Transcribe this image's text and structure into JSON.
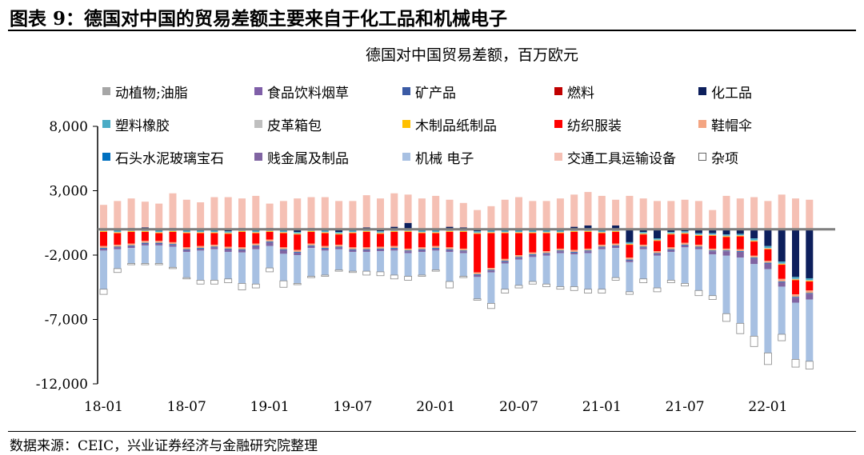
{
  "figure": {
    "title": "图表 9：德国对中国的贸易差额主要来自于化工品和机械电子",
    "source": "数据来源：CEIC，兴业证券经济与金融研究院整理"
  },
  "chart_data": {
    "type": "bar",
    "stacked": true,
    "title": "德国对中国贸易差额，百万欧元",
    "xlabel": "",
    "ylabel": "",
    "ylim": [
      -12000,
      8000
    ],
    "yticks": [
      8000,
      3000,
      -2000,
      -7000,
      -12000
    ],
    "ytick_labels": [
      "8,000",
      "3,000",
      "-2,000",
      "-7,000",
      "-12,000"
    ],
    "xtick_labels": [
      "18-01",
      "18-07",
      "19-01",
      "19-07",
      "20-01",
      "20-07",
      "21-01",
      "21-07",
      "22-01"
    ],
    "legend_position": "top",
    "categories": [
      "18-01",
      "18-02",
      "18-03",
      "18-04",
      "18-05",
      "18-06",
      "18-07",
      "18-08",
      "18-09",
      "18-10",
      "18-11",
      "18-12",
      "19-01",
      "19-02",
      "19-03",
      "19-04",
      "19-05",
      "19-06",
      "19-07",
      "19-08",
      "19-09",
      "19-10",
      "19-11",
      "19-12",
      "20-01",
      "20-02",
      "20-03",
      "20-04",
      "20-05",
      "20-06",
      "20-07",
      "20-08",
      "20-09",
      "20-10",
      "20-11",
      "20-12",
      "21-01",
      "21-02",
      "21-03",
      "21-04",
      "21-05",
      "21-06",
      "21-07",
      "21-08",
      "21-09",
      "21-10",
      "21-11",
      "21-12",
      "22-01",
      "22-02",
      "22-03",
      "22-04"
    ],
    "series": [
      {
        "name": "动植物;油脂",
        "color": "#a6a6a6",
        "outline": false,
        "values": [
          0,
          0,
          0,
          0,
          0,
          0,
          0,
          0,
          0,
          0,
          0,
          0,
          0,
          0,
          0,
          0,
          0,
          0,
          0,
          0,
          0,
          0,
          0,
          0,
          0,
          0,
          0,
          0,
          0,
          0,
          0,
          0,
          0,
          0,
          0,
          0,
          0,
          0,
          0,
          0,
          0,
          0,
          0,
          0,
          0,
          0,
          0,
          0,
          0,
          0,
          0,
          0
        ]
      },
      {
        "name": "食品饮料烟草",
        "color": "#7f5fa8",
        "outline": false,
        "values": [
          0,
          0,
          0,
          0,
          0,
          0,
          0,
          0,
          0,
          0,
          0,
          0,
          0,
          0,
          0,
          0,
          0,
          0,
          0,
          0,
          0,
          0,
          0,
          0,
          0,
          0,
          0,
          0,
          0,
          0,
          0,
          0,
          0,
          0,
          0,
          0,
          0,
          0,
          0,
          0,
          0,
          0,
          0,
          0,
          0,
          0,
          0,
          0,
          0,
          0,
          0,
          0
        ]
      },
      {
        "name": "矿产品",
        "color": "#3b5ba5",
        "outline": false,
        "values": [
          0,
          0,
          0,
          0,
          0,
          0,
          0,
          0,
          0,
          0,
          0,
          0,
          0,
          0,
          0,
          0,
          0,
          0,
          0,
          0,
          0,
          0,
          0,
          0,
          0,
          0,
          0,
          0,
          0,
          0,
          0,
          0,
          0,
          0,
          0,
          0,
          0,
          0,
          0,
          0,
          0,
          0,
          0,
          0,
          0,
          0,
          0,
          0,
          0,
          0,
          0,
          0
        ]
      },
      {
        "name": "燃料",
        "color": "#c00000",
        "outline": false,
        "values": [
          0,
          0,
          0,
          0,
          0,
          0,
          0,
          0,
          0,
          0,
          0,
          0,
          0,
          0,
          0,
          0,
          0,
          0,
          0,
          0,
          0,
          0,
          0,
          0,
          0,
          0,
          0,
          0,
          0,
          0,
          0,
          0,
          0,
          0,
          0,
          0,
          0,
          0,
          0,
          0,
          0,
          0,
          0,
          0,
          0,
          0,
          0,
          0,
          0,
          0,
          0,
          0
        ]
      },
      {
        "name": "化工品",
        "color": "#0d1f5c",
        "outline": false,
        "values": [
          0,
          -100,
          100,
          150,
          -100,
          100,
          -100,
          -100,
          -100,
          -150,
          100,
          -100,
          100,
          -100,
          -200,
          100,
          -100,
          -200,
          -100,
          150,
          -150,
          200,
          500,
          -100,
          -100,
          200,
          150,
          -150,
          -100,
          -100,
          -100,
          -100,
          -100,
          -100,
          200,
          300,
          -100,
          300,
          -1000,
          -200,
          -700,
          -200,
          -150,
          -300,
          -300,
          -400,
          -350,
          -700,
          -1300,
          -2500,
          -3700,
          -3800
        ]
      },
      {
        "name": "塑料橡胶",
        "color": "#4bacc6",
        "outline": false,
        "values": [
          -100,
          -100,
          -100,
          -100,
          -100,
          -100,
          -100,
          -100,
          -100,
          -100,
          -100,
          -100,
          -100,
          -100,
          -100,
          -100,
          -100,
          -100,
          -100,
          -100,
          -100,
          -100,
          -100,
          -100,
          -100,
          -100,
          -100,
          -100,
          -100,
          -100,
          -100,
          -100,
          -100,
          -100,
          -100,
          -100,
          -100,
          -100,
          -100,
          -100,
          -100,
          -100,
          -100,
          -100,
          -100,
          -100,
          -100,
          -150,
          -150,
          -150,
          -150,
          -150
        ]
      },
      {
        "name": "皮革箱包",
        "color": "#bfbfbf",
        "outline": false,
        "values": [
          -50,
          -50,
          -50,
          -50,
          -50,
          -50,
          -50,
          -50,
          -50,
          -50,
          -50,
          -50,
          -50,
          -50,
          -50,
          -50,
          -50,
          -50,
          -50,
          -50,
          -50,
          -50,
          -50,
          -50,
          -50,
          -50,
          -50,
          -50,
          -50,
          -50,
          -50,
          -50,
          -50,
          -50,
          -50,
          -50,
          -50,
          -50,
          -50,
          -50,
          -50,
          -50,
          -50,
          -50,
          -50,
          -50,
          -50,
          -50,
          -50,
          -50,
          -50,
          -50
        ]
      },
      {
        "name": "木制品纸制品",
        "color": "#ffc000",
        "outline": false,
        "values": [
          -50,
          -50,
          -50,
          -50,
          -50,
          -50,
          -50,
          -50,
          -50,
          -50,
          -50,
          -50,
          -50,
          -50,
          -50,
          -50,
          -50,
          -50,
          -50,
          -50,
          -50,
          -50,
          -50,
          -50,
          -50,
          -50,
          -50,
          -50,
          -50,
          -50,
          -50,
          -50,
          -50,
          -50,
          -50,
          -50,
          -50,
          -50,
          -50,
          -50,
          -50,
          -50,
          -50,
          -50,
          -50,
          -50,
          -50,
          -50,
          -50,
          -50,
          -50,
          -50
        ]
      },
      {
        "name": "纺织服装",
        "color": "#ff0000",
        "outline": false,
        "values": [
          -1100,
          -900,
          -900,
          -700,
          -600,
          -800,
          -1100,
          -1000,
          -900,
          -1000,
          -1200,
          -800,
          -600,
          -1100,
          -1200,
          -900,
          -1000,
          -800,
          -1100,
          -1200,
          -1000,
          -1100,
          -1300,
          -1100,
          -1000,
          -1200,
          -1300,
          -3000,
          -2700,
          -2000,
          -1700,
          -1500,
          -1400,
          -1200,
          -1400,
          -1300,
          -900,
          -900,
          -1000,
          -800,
          -800,
          -1000,
          -700,
          -700,
          -1000,
          -900,
          -1000,
          -1100,
          -900,
          -1100,
          -1100,
          -700
        ]
      },
      {
        "name": "鞋帽伞",
        "color": "#f4a582",
        "outline": false,
        "values": [
          -150,
          -150,
          -150,
          -150,
          -150,
          -150,
          -150,
          -150,
          -150,
          -150,
          -150,
          -150,
          -150,
          -150,
          -150,
          -150,
          -150,
          -150,
          -150,
          -150,
          -150,
          -150,
          -150,
          -150,
          -150,
          -150,
          -150,
          -150,
          -150,
          -150,
          -150,
          -150,
          -150,
          -150,
          -150,
          -150,
          -150,
          -150,
          -150,
          -150,
          -150,
          -150,
          -150,
          -150,
          -150,
          -150,
          -150,
          -150,
          -150,
          -200,
          -200,
          -200
        ]
      },
      {
        "name": "石头水泥玻璃宝石",
        "color": "#0070c0",
        "outline": false,
        "values": [
          -50,
          -50,
          -50,
          -50,
          -50,
          -50,
          -50,
          -50,
          -50,
          -50,
          -50,
          -50,
          -50,
          -50,
          -50,
          -50,
          -50,
          -50,
          -50,
          -50,
          -50,
          -50,
          -50,
          -50,
          -50,
          -50,
          -50,
          -50,
          -50,
          -50,
          -50,
          -50,
          -50,
          -50,
          -50,
          -50,
          -50,
          -50,
          -50,
          -50,
          -50,
          -50,
          -50,
          -50,
          -50,
          -50,
          -50,
          -50,
          -50,
          -50,
          -50,
          -50
        ]
      },
      {
        "name": "贱金属及制品",
        "color": "#8064a2",
        "outline": false,
        "values": [
          -150,
          -150,
          -150,
          -150,
          -150,
          -150,
          -150,
          -150,
          -150,
          -200,
          -200,
          -250,
          -300,
          -300,
          -200,
          -150,
          -150,
          -150,
          -150,
          -150,
          -150,
          -150,
          -150,
          -150,
          -150,
          -150,
          -150,
          -150,
          -150,
          -150,
          -150,
          -150,
          -150,
          -150,
          -150,
          -150,
          -150,
          -150,
          -150,
          -150,
          -150,
          -150,
          -150,
          -150,
          -250,
          -350,
          -450,
          -450,
          -450,
          -350,
          -400,
          -450
        ]
      },
      {
        "name": "机械 电子",
        "color": "#a7c0e2",
        "outline": false,
        "values": [
          -3000,
          -1500,
          -1200,
          -1400,
          -1400,
          -1600,
          -2000,
          -2300,
          -2400,
          -2100,
          -2400,
          -2700,
          -1700,
          -2100,
          -2200,
          -2200,
          -1900,
          -1600,
          -1500,
          -1500,
          -1600,
          -1900,
          -1800,
          -1800,
          -1500,
          -2300,
          -1800,
          -1700,
          -2400,
          -2000,
          -2000,
          -1900,
          -2200,
          -2600,
          -2500,
          -2800,
          -3100,
          -2300,
          -2300,
          -2300,
          -2500,
          -2200,
          -2800,
          -3200,
          -3200,
          -4500,
          -5100,
          -5600,
          -6500,
          -3700,
          -4400,
          -4800
        ]
      },
      {
        "name": "交通工具运输设备",
        "color": "#f5c0b4",
        "outline": false,
        "values": [
          1900,
          2200,
          2300,
          2000,
          2000,
          2700,
          2300,
          2100,
          2500,
          2500,
          2300,
          2600,
          1900,
          2200,
          2400,
          2400,
          2500,
          2200,
          2200,
          2500,
          2400,
          2600,
          2200,
          2400,
          2600,
          2100,
          1900,
          1500,
          1800,
          2300,
          2500,
          2200,
          2200,
          2400,
          2500,
          2600,
          2600,
          2000,
          2600,
          2400,
          2200,
          2200,
          2300,
          2200,
          1500,
          2600,
          2400,
          2500,
          2200,
          2700,
          2400,
          2300
        ]
      },
      {
        "name": "杂项",
        "color": "#ffffff",
        "outline": true,
        "values": [
          -400,
          -300,
          -100,
          -100,
          -100,
          -100,
          -100,
          -300,
          -300,
          -300,
          -500,
          -300,
          -300,
          -500,
          -100,
          -100,
          -100,
          -100,
          -100,
          -300,
          -300,
          -300,
          -300,
          -100,
          -100,
          -500,
          -100,
          -100,
          -400,
          -300,
          -200,
          -200,
          -200,
          -200,
          -300,
          -300,
          -300,
          -200,
          -200,
          -300,
          -300,
          -200,
          -200,
          -400,
          -300,
          -600,
          -800,
          -800,
          -900,
          -500,
          -600,
          -600
        ]
      }
    ]
  }
}
